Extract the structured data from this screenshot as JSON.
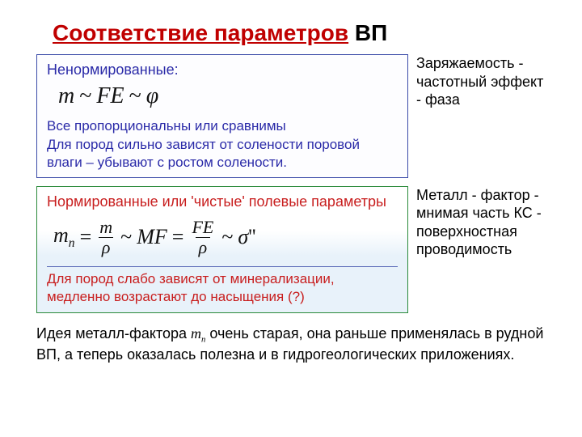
{
  "title": {
    "part_red": "Соответствие параметров",
    "part_black": " ВП"
  },
  "box1": {
    "heading": "Ненормированные:",
    "formula_parts": {
      "m": "m",
      "tilde1": "~",
      "FE": "FE",
      "tilde2": "~",
      "phi": "φ"
    },
    "line1": "Все пропорциональны или сравнимы",
    "line2": "Для пород сильно зависят от солености поровой влаги – убывают с ростом солености."
  },
  "side1": "Заряжаемость - частотный эффект - фаза",
  "box2": {
    "heading": "Нормированные или 'чистые' полевые параметры",
    "formula_parts": {
      "mn": "m",
      "mn_sub": "n",
      "eq1": "=",
      "frac1_num": "m",
      "frac1_den": "ρ",
      "tilde1": "~",
      "MF": "MF",
      "eq2": "=",
      "frac2_num": "FE",
      "frac2_den": "ρ",
      "tilde2": "~",
      "sigma": "σ",
      "primes": "''"
    },
    "line1": "Для пород слабо зависят от минерализации, медленно возрастают до насыщения (?)"
  },
  "side2": "Металл - фактор - мнимая часть КС - поверхностная проводимость",
  "footer": {
    "pre": "Идея металл-фактора ",
    "mi": "m",
    "mi_sub": "n",
    "post": " очень старая, она раньше применялась в рудной ВП, а теперь оказалась полезна и в гидрогеологических приложениях."
  },
  "colors": {
    "title_red": "#c00000",
    "heading_blue": "#2a2aa8",
    "heading_red": "#c81e1e",
    "box1_border": "#3a4aa8",
    "box2_border": "#2a8a3a",
    "text_black": "#000000"
  }
}
